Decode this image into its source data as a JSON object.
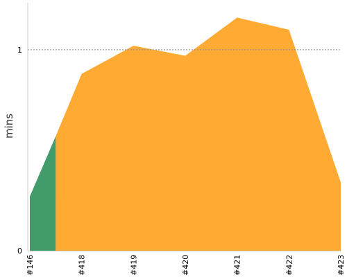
{
  "chart_data": {
    "type": "area",
    "title": "",
    "xlabel": "",
    "ylabel": "mins",
    "categories": [
      "#146",
      "#418",
      "#419",
      "#420",
      "#421",
      "#422",
      "#423"
    ],
    "x_index": [
      0,
      1,
      2,
      3,
      4,
      5,
      6
    ],
    "y_ticks": [
      0,
      1
    ],
    "ylim": [
      0,
      1.22
    ],
    "reference_line": {
      "value": 1,
      "style": "dotted",
      "color": "#888888"
    },
    "grid": false,
    "legend": "none",
    "series": [
      {
        "color": "#419b6a",
        "points": [
          {
            "x": 0,
            "y": 0.27
          },
          {
            "x": 0.5,
            "y": 0.57
          }
        ]
      },
      {
        "color": "#ffab33",
        "points": [
          {
            "x": 0.5,
            "y": 0.57
          },
          {
            "x": 1,
            "y": 0.88
          },
          {
            "x": 2,
            "y": 1.02
          },
          {
            "x": 3,
            "y": 0.97
          },
          {
            "x": 4,
            "y": 1.16
          },
          {
            "x": 5,
            "y": 1.1
          },
          {
            "x": 6,
            "y": 0.34
          }
        ]
      }
    ],
    "axis_color": "#cccccc"
  }
}
